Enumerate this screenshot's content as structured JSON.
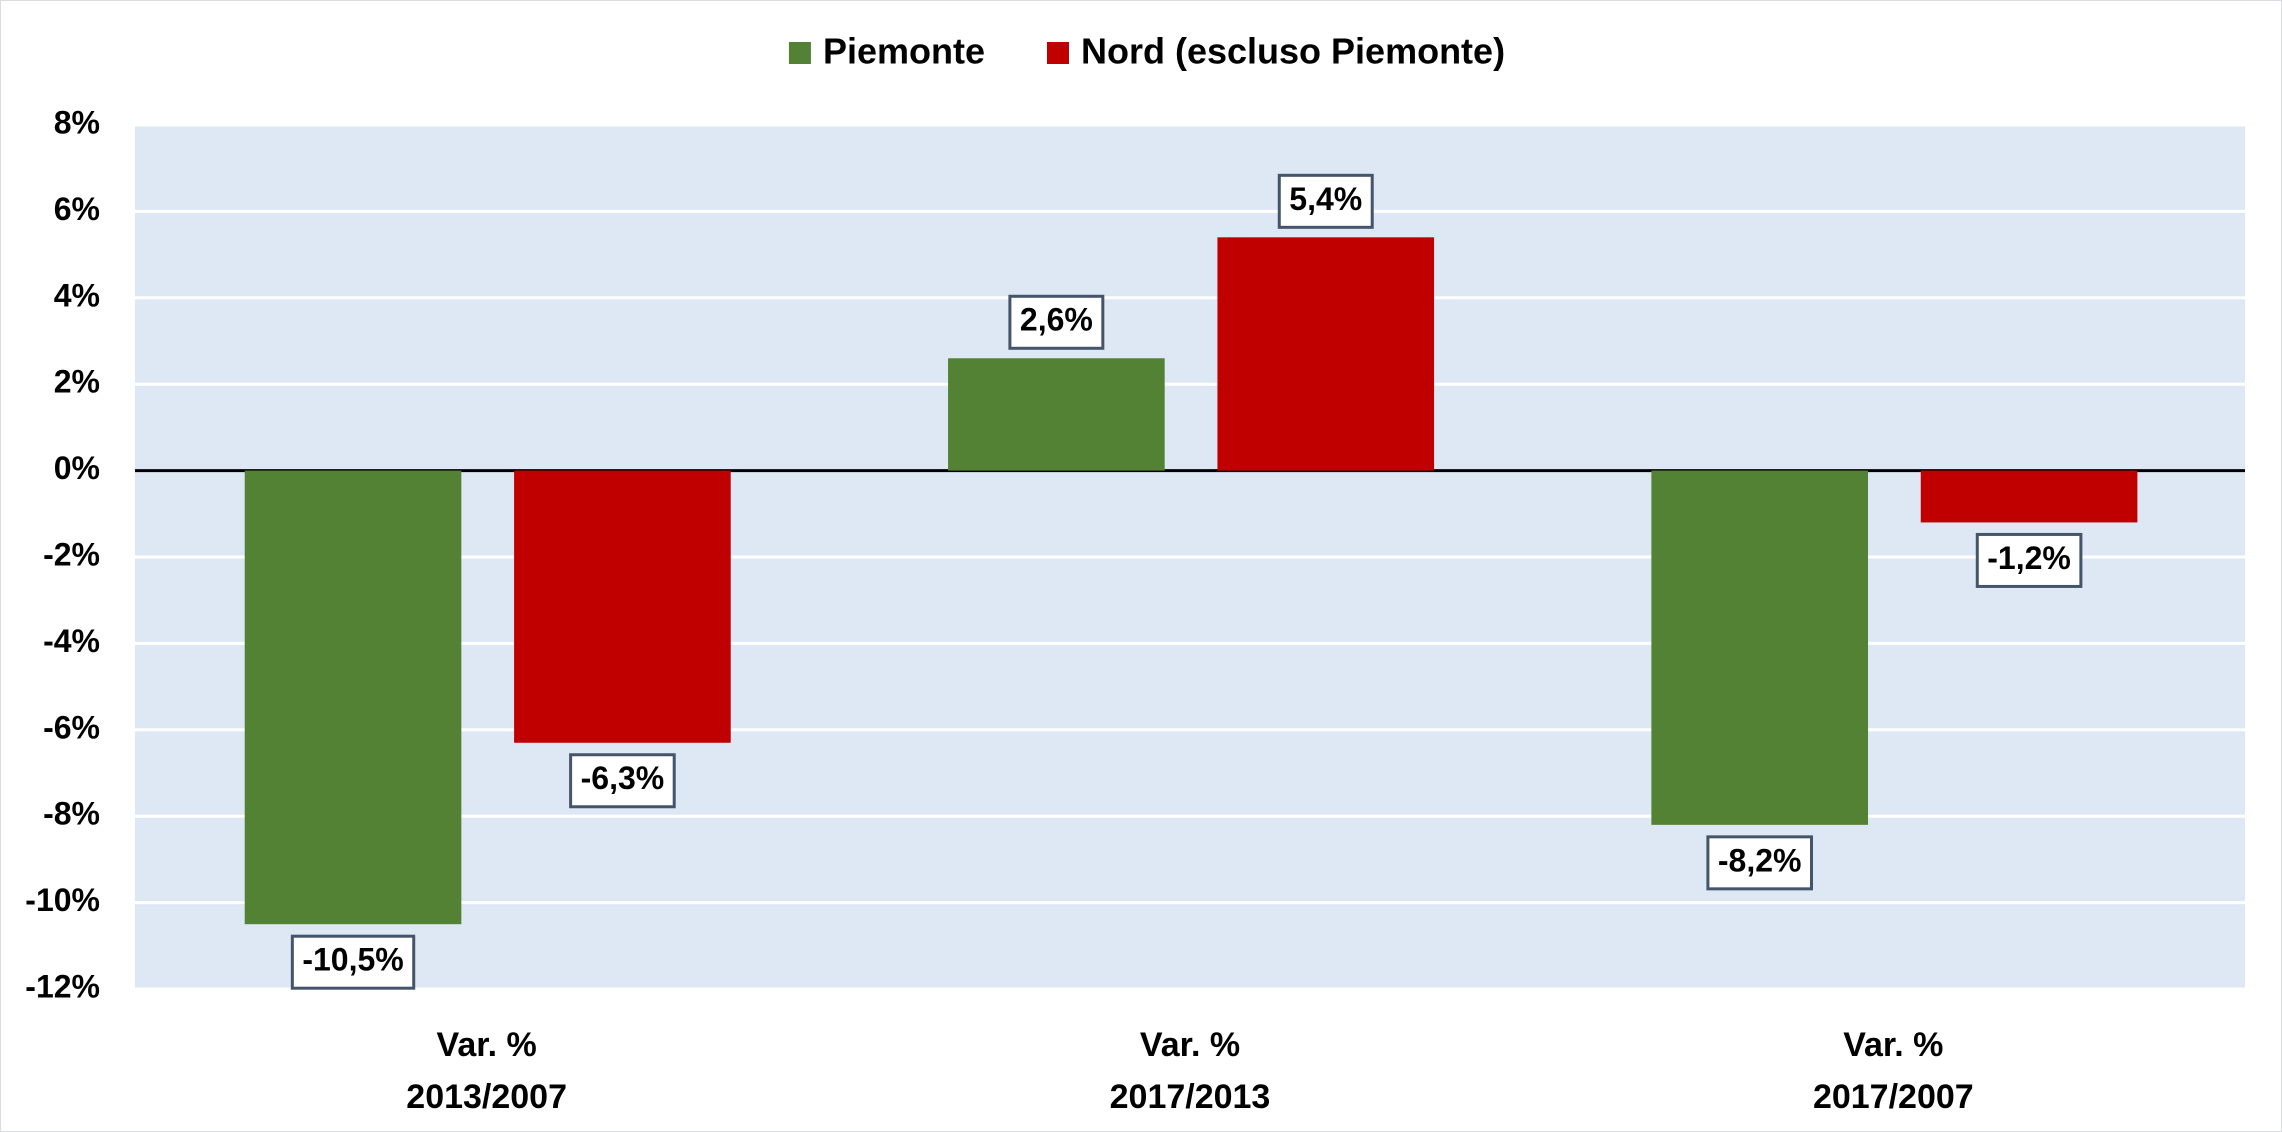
{
  "chart_data": {
    "type": "bar",
    "categories": [
      "Var. %\n2013/2007",
      "Var. %\n2017/2013",
      "Var. %\n2017/2007"
    ],
    "series": [
      {
        "name": "Piemonte",
        "color": "#548235",
        "values": [
          -10.5,
          2.6,
          -8.2
        ],
        "value_labels": [
          "-10,5%",
          "2,6%",
          "-8,2%"
        ]
      },
      {
        "name": "Nord (escluso Piemonte)",
        "color": "#c00000",
        "values": [
          -6.3,
          5.4,
          -1.2
        ],
        "value_labels": [
          "-6,3%",
          "5,4%",
          "-1,2%"
        ]
      }
    ],
    "ylim": [
      -12,
      8
    ],
    "yticks": [
      {
        "value": -12,
        "label": "-12%"
      },
      {
        "value": -10,
        "label": "-10%"
      },
      {
        "value": -8,
        "label": "-8%"
      },
      {
        "value": -6,
        "label": "-6%"
      },
      {
        "value": -4,
        "label": "-4%"
      },
      {
        "value": -2,
        "label": "-2%"
      },
      {
        "value": 0,
        "label": "0%"
      },
      {
        "value": 2,
        "label": "2%"
      },
      {
        "value": 4,
        "label": "4%"
      },
      {
        "value": 6,
        "label": "6%"
      },
      {
        "value": 8,
        "label": "8%"
      }
    ],
    "grid": true,
    "legend": "top"
  }
}
